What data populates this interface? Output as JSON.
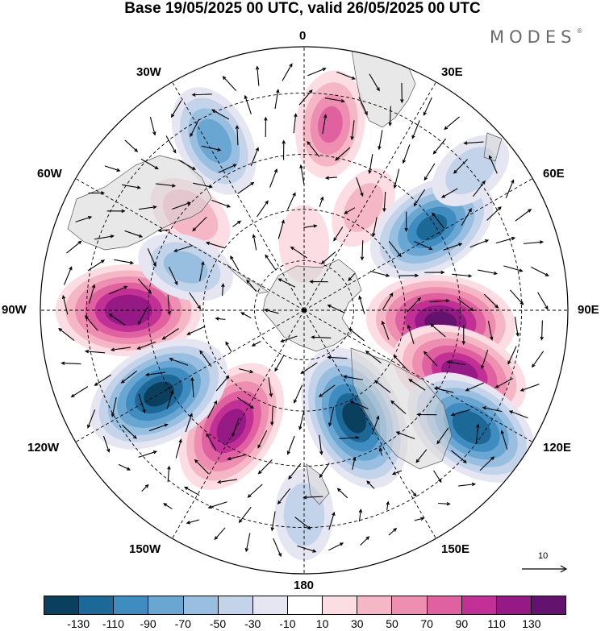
{
  "title": "Base 19/05/2025 00 UTC, valid 26/05/2025 00 UTC",
  "logo": {
    "text": "MODES",
    "mark": "®"
  },
  "longitude_labels": {
    "lon_0": "0",
    "lon_30e": "30E",
    "lon_60e": "60E",
    "lon_90e": "90E",
    "lon_120e": "120E",
    "lon_150e": "150E",
    "lon_180": "180",
    "lon_150w": "150W",
    "lon_120w": "120W",
    "lon_90w": "90W",
    "lon_60w": "60W",
    "lon_30w": "30W"
  },
  "vector_reference": {
    "value": "10"
  },
  "colorbar": {
    "colors": [
      "#0b3f5e",
      "#1c6896",
      "#3f8dc0",
      "#6aa6d2",
      "#98bfe0",
      "#c3d3ea",
      "#e6e6f2",
      "#ffffff",
      "#fbdde3",
      "#f5b7c6",
      "#ee8fb1",
      "#e0619f",
      "#c22f95",
      "#951a86",
      "#63126e"
    ],
    "labels": [
      "-130",
      "-110",
      "-90",
      "-70",
      "-50",
      "-30",
      "-10",
      "10",
      "30",
      "50",
      "70",
      "90",
      "110",
      "130"
    ]
  },
  "map": {
    "projection": "south-polar-stereographic",
    "field_palette": "anomaly",
    "anomaly_centers": [
      {
        "lon": 95,
        "lat": -50,
        "value": 130
      },
      {
        "lon": 112,
        "lat": -42,
        "value": 115
      },
      {
        "lon": -90,
        "lat": -40,
        "value": 125
      },
      {
        "lon": -148,
        "lat": -50,
        "value": 115
      },
      {
        "lon": 8,
        "lat": -37,
        "value": 70
      },
      {
        "lon": -50,
        "lat": -47,
        "value": 45
      },
      {
        "lon": 155,
        "lat": -48,
        "value": 45
      },
      {
        "lon": 0,
        "lat": -70,
        "value": 25
      },
      {
        "lon": 30,
        "lat": -55,
        "value": 35
      },
      {
        "lon": -120,
        "lat": -42,
        "value": -130
      },
      {
        "lon": 155,
        "lat": -55,
        "value": -130
      },
      {
        "lon": 125,
        "lat": -33,
        "value": -120
      },
      {
        "lon": 57,
        "lat": -46,
        "value": -110
      },
      {
        "lon": -28,
        "lat": -36,
        "value": -80
      },
      {
        "lon": -70,
        "lat": -53,
        "value": -55
      },
      {
        "lon": 50,
        "lat": -30,
        "value": -40
      },
      {
        "lon": 180,
        "lat": -33,
        "value": -45
      }
    ]
  }
}
